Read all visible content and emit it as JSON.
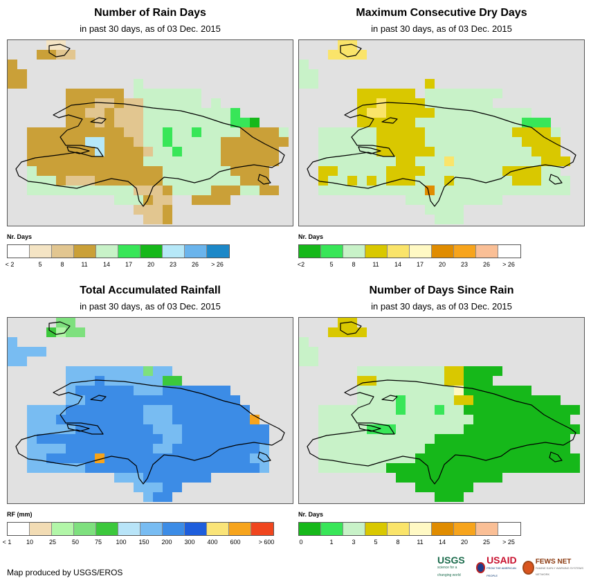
{
  "panels": [
    {
      "title": "Number of Rain Days",
      "subtitle": "in past 30 days, as of 03 Dec. 2015",
      "legend_title": "Nr. Days",
      "legend": [
        {
          "color": "#ffffff",
          "label": "< 2"
        },
        {
          "color": "#f4e4c4",
          "label": "5"
        },
        {
          "color": "#e2c690",
          "label": "8"
        },
        {
          "color": "#caa038",
          "label": "11"
        },
        {
          "color": "#c8f2c8",
          "label": "14"
        },
        {
          "color": "#38e658",
          "label": "17"
        },
        {
          "color": "#16b81a",
          "label": "20"
        },
        {
          "color": "#b6e8f8",
          "label": "23"
        },
        {
          "color": "#6ab4ec",
          "label": "26"
        },
        {
          "color": "#1c88c8",
          "label": "> 26"
        }
      ],
      "label_mode": "between",
      "grid": [
        "....11........................",
        "...3322.......................",
        "3.............................",
        "33............................",
        "33...........4................",
        "......333333.4444444..........",
        "......33322322444444.4........",
        "......332232224444444445......",
        "......33323222444444444556....",
        "..333333333322445445444433334.",
        "..333333773332445444443333333.",
        "..33333337333324454444333333..",
        "..33333333333344444444333333..",
        "..4333333333333344444443333...",
        "..4443222333333344444444333...",
        "..44444444444222344443334433..",
        "...........444322..3333.......",
        ".............2223.............",
        "..............223............."
      ]
    },
    {
      "title": "Maximum Consecutive Dry Days",
      "subtitle": "in past 30 days, as of 03 Dec. 2015",
      "legend_title": "Nr. Days",
      "legend": [
        {
          "color": "#16b81a",
          "label": "<2"
        },
        {
          "color": "#38e658",
          "label": "5"
        },
        {
          "color": "#c8f2c8",
          "label": "8"
        },
        {
          "color": "#d9c800",
          "label": "11"
        },
        {
          "color": "#fae46a",
          "label": "14"
        },
        {
          "color": "#fff9c4",
          "label": "17"
        },
        {
          "color": "#e08c00",
          "label": "20"
        },
        {
          "color": "#f7a41c",
          "label": "23"
        },
        {
          "color": "#fabf96",
          "label": "26"
        },
        {
          "color": "#ffffff",
          "label": "> 26"
        }
      ],
      "label_mode": "between",
      "grid": [
        "....44........................",
        "...4444.......................",
        "2.............................",
        "22............................",
        "22...........3................",
        "......333333.22222222.........",
        "......33433332222222..........",
        "......344333332222222222......",
        "......33333322222222222111....",
        "..2222223333322222222233332...",
        "..2222223333322222222223333...",
        "..2222223333332222222222333...",
        "..22222222332224222222222333..",
        "..3322222333322222222333322...",
        "..32232323332223222222333222..",
        "..22222222222622222222222222..",
        "...........2222222222.........",
        ".............2222.............",
        "..............222............."
      ]
    },
    {
      "title": "Total Accumulated Rainfall",
      "subtitle": "in past 30 days, as of 03 Dec. 2015",
      "legend_title": "RF (mm)",
      "legend": [
        {
          "color": "#ffffff",
          "label": "< 1"
        },
        {
          "color": "#f2dcb4",
          "label": "10"
        },
        {
          "color": "#b2f6a8",
          "label": "25"
        },
        {
          "color": "#7ee07e",
          "label": "50"
        },
        {
          "color": "#3cc83c",
          "label": "75"
        },
        {
          "color": "#b8e4f8",
          "label": "100"
        },
        {
          "color": "#78bcf2",
          "label": "150"
        },
        {
          "color": "#3c8ce6",
          "label": "200"
        },
        {
          "color": "#1e5edc",
          "label": "300"
        },
        {
          "color": "#fae478",
          "label": "400"
        },
        {
          "color": "#f7a41c",
          "label": "600"
        },
        {
          "color": "#f0461e",
          "label": "> 600"
        }
      ],
      "label_mode": "edges",
      "grid": [
        ".....33.......................",
        "....4233......................",
        "6.............................",
        "6666..........................",
        "66............................",
        "......66666666366.............",
        "......666766666644............",
        "......67777776667777777.......",
        "......667777777777777777......",
        "..66667777777766677777777.....",
        "..66677777777766677777777A....",
        "..6666677777777666777777777...",
        "..6777777777777766777777777...",
        "..6666777777777667777777776...",
        "..6677777A77777777777777766...",
        "..6666667777777777777777776...",
        "...........6667777777.........",
        ".............66677............",
        "..............677............."
      ]
    },
    {
      "title": "Number of Days Since Rain",
      "subtitle": "in past 30 days, as of 03 Dec. 2015",
      "legend_title": "Nr. Days",
      "legend": [
        {
          "color": "#16b81a",
          "label": "0"
        },
        {
          "color": "#38e658",
          "label": "1"
        },
        {
          "color": "#c8f2c8",
          "label": "3"
        },
        {
          "color": "#d9c800",
          "label": "5"
        },
        {
          "color": "#fae46a",
          "label": "8"
        },
        {
          "color": "#fff9c4",
          "label": "11"
        },
        {
          "color": "#e08c00",
          "label": "14"
        },
        {
          "color": "#f7a41c",
          "label": "20"
        },
        {
          "color": "#fabf96",
          "label": "25"
        },
        {
          "color": "#ffffff",
          "label": "> 25"
        }
      ],
      "label_mode": "between",
      "grid": [
        "....33........................",
        "...3333.......................",
        "2.............................",
        "22............................",
        "22............................",
        "......222222222330000.........",
        "......33222222233000..........",
        "......222222222250000000......",
        "......222212222233000000000...",
        "..222222221222122000000000000.",
        "..22222222222222220000000000..",
        "..222221112222222000000000000.",
        "..22222222222200000000000000..",
        "..22222222222000000000000000..",
        "..222222222200000000000000000.",
        "..222222200000000000000000000.",
        "..........00000000000.........",
        "............000000............",
        "..............000............."
      ]
    }
  ],
  "credit": "Map produced by USGS/EROS",
  "logos": {
    "usgs": "USGS",
    "usgs_tagline": "science for a changing world",
    "usaid": "USAID",
    "usaid_tagline": "FROM THE AMERICAN PEOPLE",
    "fews": "FEWS NET",
    "fews_tagline": "FAMINE EARLY WARNING SYSTEMS NETWORK"
  }
}
